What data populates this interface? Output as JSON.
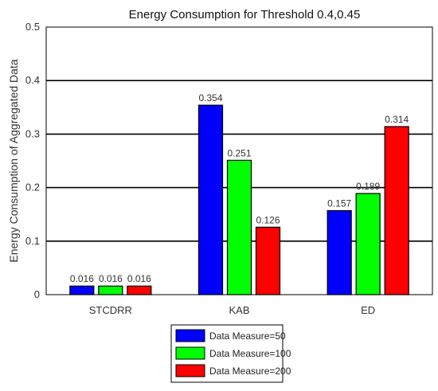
{
  "chart_data": {
    "type": "bar",
    "title": "Energy Consumption for Threshold 0.4,0.45",
    "xlabel": "",
    "ylabel": "Energy Consumption of Aggregated Data",
    "categories": [
      "STCDRR",
      "KAB",
      "ED"
    ],
    "series": [
      {
        "name": "Data Measure=50",
        "color": "#0000ff",
        "values": [
          0.016,
          0.354,
          0.157
        ],
        "labels": [
          "0.016",
          "0.354",
          "0.157"
        ]
      },
      {
        "name": "Data Measure=100",
        "color": "#00ff00",
        "values": [
          0.016,
          0.251,
          0.189
        ],
        "labels": [
          "0.016",
          "0.251",
          "0.189"
        ]
      },
      {
        "name": "Data Measure=200",
        "color": "#ff0000",
        "values": [
          0.016,
          0.126,
          0.314
        ],
        "labels": [
          "0.016",
          "0.126",
          "0.314"
        ]
      }
    ],
    "ylim": [
      0,
      0.5
    ],
    "yticks": [
      "0",
      "0.1",
      "0.2",
      "0.3",
      "0.4",
      "0.5"
    ],
    "grid": "horizontal",
    "legend": "bottom-center"
  }
}
